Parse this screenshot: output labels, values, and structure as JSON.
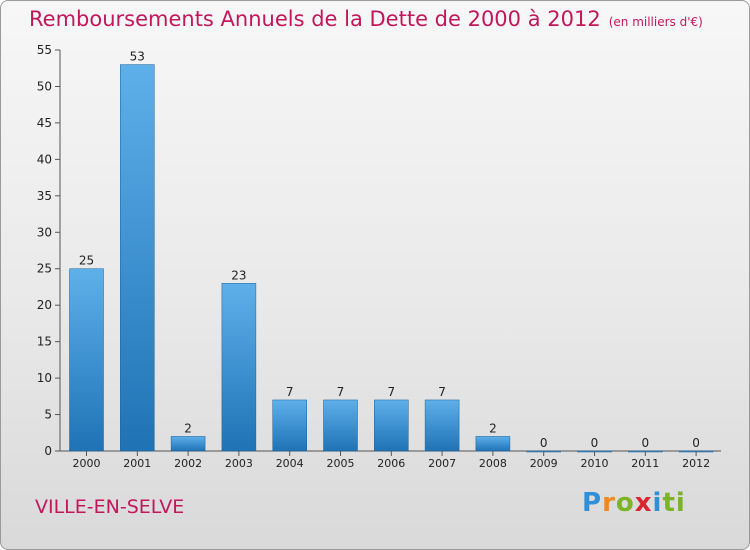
{
  "title": "Remboursements Annuels de la Dette de 2000 à 2012",
  "unit_note": "(en milliers d'€)",
  "location": "VILLE-EN-SELVE",
  "logo_text": "Proxiti",
  "colors": {
    "title": "#c2185b",
    "bar_top": "#5eb0ea",
    "bar_bottom": "#1f73b5"
  },
  "chart_data": {
    "type": "bar",
    "categories": [
      "2000",
      "2001",
      "2002",
      "2003",
      "2004",
      "2005",
      "2006",
      "2007",
      "2008",
      "2009",
      "2010",
      "2011",
      "2012"
    ],
    "values": [
      25,
      53,
      2,
      23,
      7,
      7,
      7,
      7,
      2,
      0,
      0,
      0,
      0
    ],
    "ylim": [
      0,
      55
    ],
    "yticks": [
      0,
      5,
      10,
      15,
      20,
      25,
      30,
      35,
      40,
      45,
      50,
      55
    ],
    "grid": false,
    "legend": "none"
  }
}
